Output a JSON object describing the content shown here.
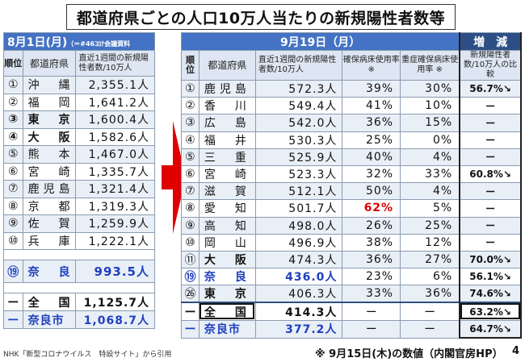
{
  "title": "都道府県ごとの人口10万人当たりの新規陽性者数等",
  "left": {
    "date": "8月1日(月)",
    "source_note": "（＝#46ｺﾛﾅ会議資料",
    "headers": {
      "rank": "順位",
      "pref": "都道府県",
      "value": "直近1週間の新規陽性者数/10万人"
    },
    "rows": [
      {
        "rank": "①",
        "pref": "沖　縄",
        "value": "2,355.1人"
      },
      {
        "rank": "②",
        "pref": "福　岡",
        "value": "1,641.2人"
      },
      {
        "rank": "③",
        "pref": "東　京",
        "value": "1,600.4人"
      },
      {
        "rank": "④",
        "pref": "大　阪",
        "value": "1,582.6人"
      },
      {
        "rank": "⑤",
        "pref": "熊　本",
        "value": "1,467.0人"
      },
      {
        "rank": "⑥",
        "pref": "宮　崎",
        "value": "1,335.7人"
      },
      {
        "rank": "⑦",
        "pref": "鹿児島",
        "value": "1,321.4人"
      },
      {
        "rank": "⑧",
        "pref": "京　都",
        "value": "1,319.3人"
      },
      {
        "rank": "⑨",
        "pref": "佐　賀",
        "value": "1,259.9人"
      },
      {
        "rank": "⑩",
        "pref": "兵　庫",
        "value": "1,222.1人"
      }
    ],
    "nara": {
      "rank": "⑲",
      "pref": "奈　良",
      "value": "993.5人"
    },
    "national": {
      "rank": "ー",
      "pref": "全　国",
      "value": "1,125.7人"
    },
    "naracity": {
      "rank": "ー",
      "pref": "奈良市",
      "value": "1,068.7人"
    }
  },
  "right": {
    "date": "9月19日（月）",
    "change_header": "増　減",
    "headers": {
      "rank": "順位",
      "pref": "都道府県",
      "value": "直近1週間の新規陽性者数/10万人",
      "bed": "確保病床使用率 ※",
      "severe": "重症確保病床使用率 ※",
      "ratio": "新規陽性者数/10万人の比較"
    },
    "rows": [
      {
        "rank": "①",
        "pref": "鹿児島",
        "value": "572.3人",
        "bed": "39%",
        "severe": "30%",
        "ratio": "56.7%↘"
      },
      {
        "rank": "②",
        "pref": "香　川",
        "value": "549.4人",
        "bed": "41%",
        "severe": "10%",
        "ratio": "ー"
      },
      {
        "rank": "③",
        "pref": "広　島",
        "value": "542.0人",
        "bed": "36%",
        "severe": "15%",
        "ratio": "ー"
      },
      {
        "rank": "④",
        "pref": "福　井",
        "value": "530.3人",
        "bed": "25%",
        "severe": "0%",
        "ratio": "ー"
      },
      {
        "rank": "⑤",
        "pref": "三　重",
        "value": "525.9人",
        "bed": "40%",
        "severe": "4%",
        "ratio": "ー"
      },
      {
        "rank": "⑥",
        "pref": "宮　崎",
        "value": "523.3人",
        "bed": "32%",
        "severe": "33%",
        "ratio": "60.8%↘"
      },
      {
        "rank": "⑦",
        "pref": "滋　賀",
        "value": "512.1人",
        "bed": "50%",
        "severe": "4%",
        "ratio": "ー"
      },
      {
        "rank": "⑧",
        "pref": "愛　知",
        "value": "501.7人",
        "bed": "62%",
        "severe": "5%",
        "ratio": "ー"
      },
      {
        "rank": "⑨",
        "pref": "高　知",
        "value": "498.0人",
        "bed": "26%",
        "severe": "25%",
        "ratio": "ー"
      },
      {
        "rank": "⑩",
        "pref": "岡　山",
        "value": "496.9人",
        "bed": "38%",
        "severe": "12%",
        "ratio": "ー"
      },
      {
        "rank": "⑪",
        "pref": "大　阪",
        "value": "474.3人",
        "bed": "36%",
        "severe": "27%",
        "ratio": "70.0%↘"
      },
      {
        "rank": "⑲",
        "pref": "奈　良",
        "value": "436.0人",
        "bed": "23%",
        "severe": "6%",
        "ratio": "56.1%↘"
      },
      {
        "rank": "㉖",
        "pref": "東　京",
        "value": "406.3人",
        "bed": "33%",
        "severe": "36%",
        "ratio": "74.6%↘"
      }
    ],
    "national": {
      "rank": "ー",
      "pref": "全　国",
      "value": "414.3人",
      "bed": "ー",
      "severe": "ー",
      "ratio": "63.2%↘"
    },
    "naracity": {
      "rank": "ー",
      "pref": "奈良市",
      "value": "377.2人",
      "bed": "ー",
      "severe": "ー",
      "ratio": "64.7%↘"
    }
  },
  "footer": {
    "source": "NHK「新型コロナウイルス　特設サイト」から引用",
    "note": "※ 9月15日(木)の数値（内閣官房HP）",
    "page": "4"
  }
}
